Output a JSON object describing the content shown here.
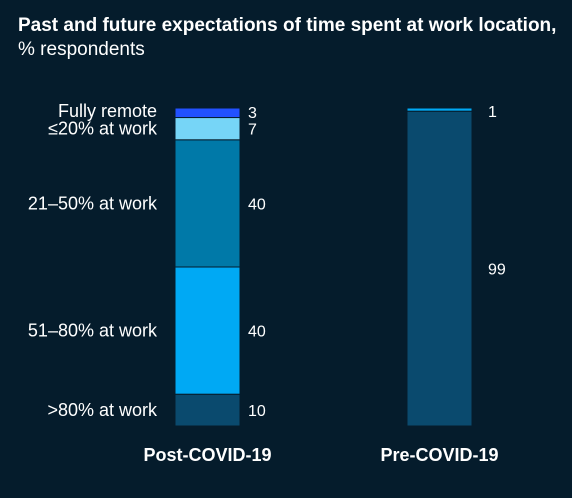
{
  "chart_data": {
    "type": "bar",
    "stacked": true,
    "title": "Past and future expectations of time spent at work location,",
    "subtitle": "% respondents",
    "ylim": [
      0,
      100
    ],
    "categories": [
      "Post-COVID-19",
      "Pre-COVID-19"
    ],
    "series": [
      {
        "name": ">80% at work",
        "values": [
          10,
          99
        ],
        "color": "#0a4a6e"
      },
      {
        "name": "51–80% at work",
        "values": [
          40,
          0
        ],
        "color": "#00a9f4"
      },
      {
        "name": "21–50% at work",
        "values": [
          40,
          0
        ],
        "color": "#0079a8"
      },
      {
        "name": "≤20% at work",
        "values": [
          7,
          0
        ],
        "color": "#76d5f7"
      },
      {
        "name": "Fully remote",
        "values": [
          3,
          1
        ],
        "color": "#2251ff"
      }
    ],
    "value_labels": [
      [
        "10",
        "40",
        "40",
        "7",
        "3"
      ],
      [
        "99",
        "1"
      ]
    ],
    "pre_covid_top_color": "#00a9f4"
  }
}
